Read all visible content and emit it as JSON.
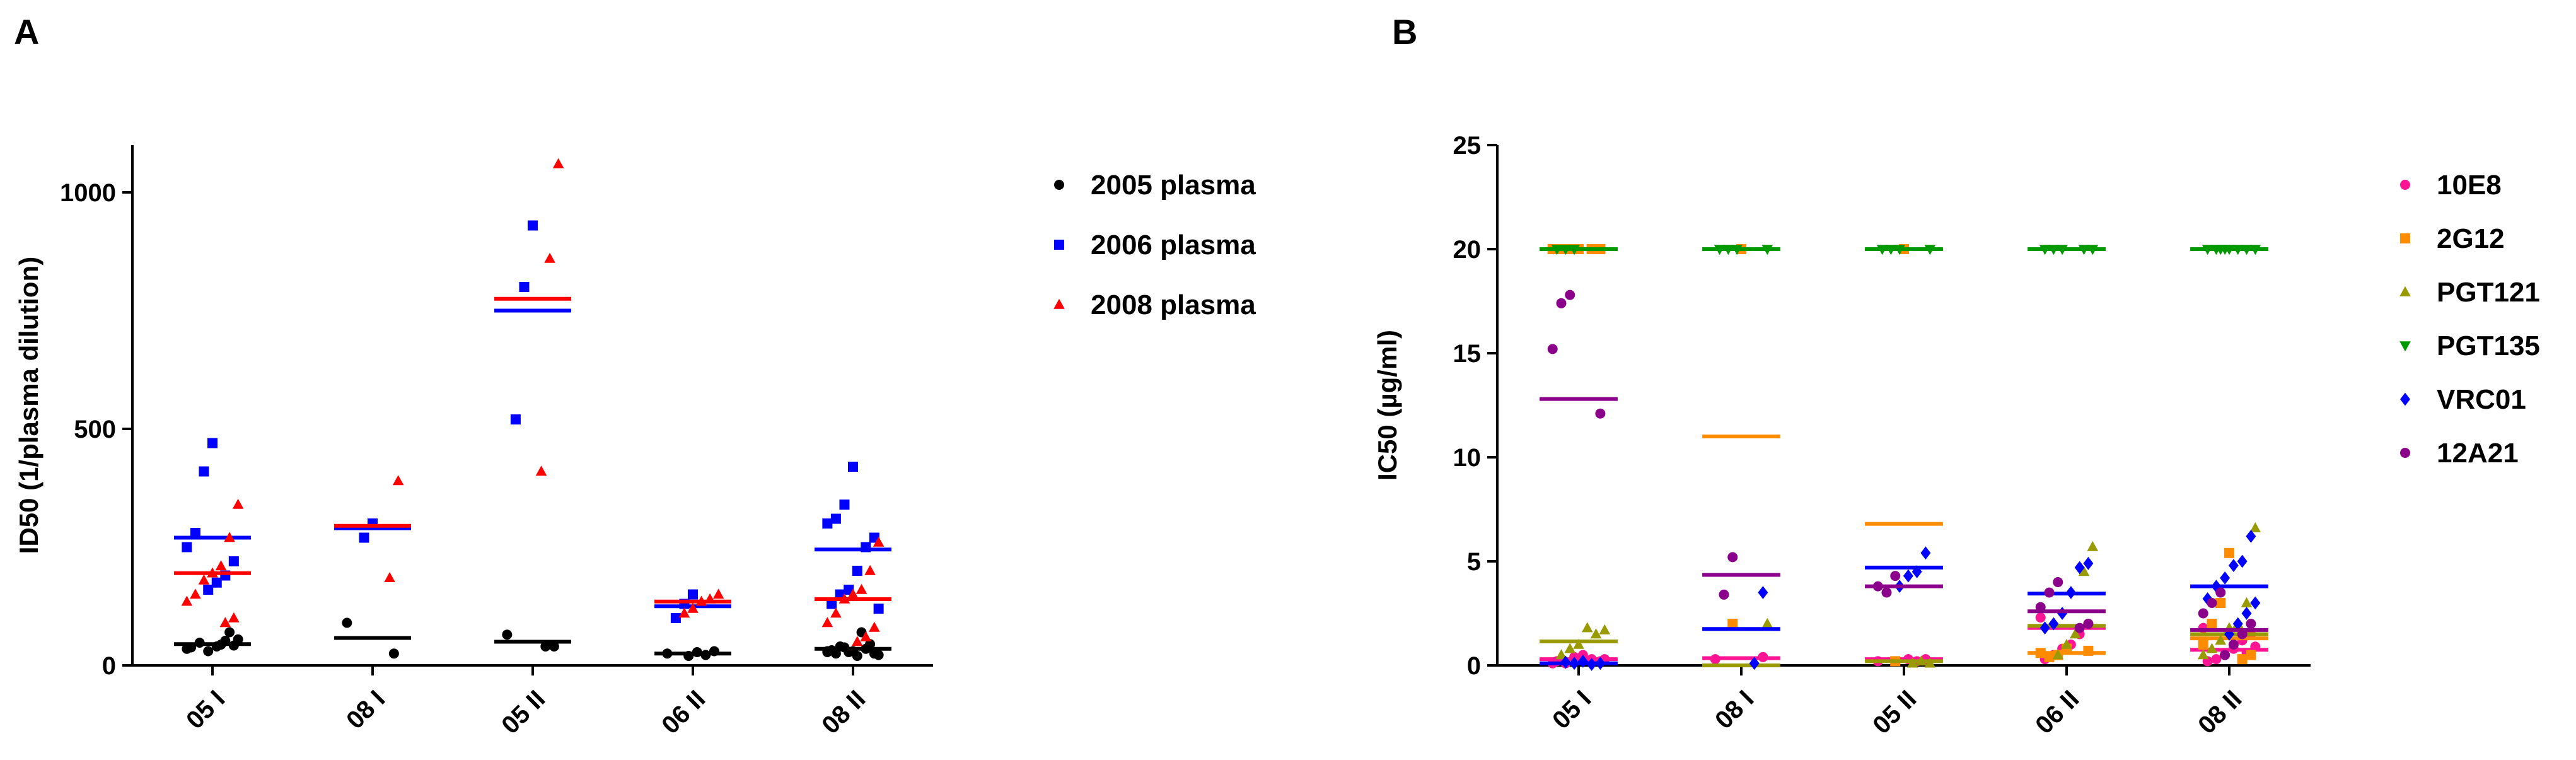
{
  "chart_data": [
    {
      "panel": "A",
      "type": "scatter",
      "categories": [
        "05 I",
        "08 I",
        "05 II",
        "06 II",
        "08 II"
      ],
      "ylabel": "ID50 (1/plasma dilution)",
      "xlabel": "",
      "ylim": [
        0,
        1100
      ],
      "yticks": [
        0,
        500,
        1000
      ],
      "legend_position": "right",
      "series": [
        {
          "name": "2005 plasma",
          "color": "#000000",
          "marker": "circle",
          "points": [
            [
              0,
              35
            ],
            [
              0,
              42
            ],
            [
              0,
              52
            ],
            [
              0,
              40
            ],
            [
              0,
              30
            ],
            [
              0,
              48
            ],
            [
              0,
              38
            ],
            [
              0,
              55
            ],
            [
              0,
              70
            ],
            [
              0,
              44
            ],
            [
              1,
              90
            ],
            [
              1,
              25
            ],
            [
              2,
              65
            ],
            [
              2,
              40
            ],
            [
              2,
              40
            ],
            [
              3,
              25
            ],
            [
              3,
              30
            ],
            [
              3,
              22
            ],
            [
              3,
              28
            ],
            [
              3,
              20
            ],
            [
              4,
              30
            ],
            [
              4,
              25
            ],
            [
              4,
              35
            ],
            [
              4,
              20
            ],
            [
              4,
              28
            ],
            [
              4,
              40
            ],
            [
              4,
              32
            ],
            [
              4,
              22
            ],
            [
              4,
              45
            ],
            [
              4,
              70
            ],
            [
              4,
              30
            ],
            [
              4,
              38
            ],
            [
              4,
              25
            ],
            [
              4,
              28
            ]
          ],
          "means": [
            45,
            58,
            50,
            25,
            35
          ]
        },
        {
          "name": "2006 plasma",
          "color": "#0000ff",
          "marker": "square",
          "points": [
            [
              0,
              470
            ],
            [
              0,
              410
            ],
            [
              0,
              280
            ],
            [
              0,
              250
            ],
            [
              0,
              220
            ],
            [
              0,
              190
            ],
            [
              0,
              175
            ],
            [
              0,
              160
            ],
            [
              1,
              300
            ],
            [
              1,
              270
            ],
            [
              2,
              930
            ],
            [
              2,
              800
            ],
            [
              2,
              520
            ],
            [
              3,
              150
            ],
            [
              3,
              130
            ],
            [
              3,
              100
            ],
            [
              4,
              420
            ],
            [
              4,
              340
            ],
            [
              4,
              310
            ],
            [
              4,
              300
            ],
            [
              4,
              270
            ],
            [
              4,
              250
            ],
            [
              4,
              200
            ],
            [
              4,
              160
            ],
            [
              4,
              150
            ],
            [
              4,
              130
            ],
            [
              4,
              120
            ]
          ],
          "means": [
            270,
            290,
            750,
            125,
            245
          ]
        },
        {
          "name": "2008 plasma",
          "color": "#ff0000",
          "marker": "triangle",
          "points": [
            [
              0,
              340
            ],
            [
              0,
              270
            ],
            [
              0,
              210
            ],
            [
              0,
              195
            ],
            [
              0,
              180
            ],
            [
              0,
              150
            ],
            [
              0,
              135
            ],
            [
              0,
              100
            ],
            [
              0,
              90
            ],
            [
              1,
              390
            ],
            [
              1,
              185
            ],
            [
              2,
              1060
            ],
            [
              2,
              860
            ],
            [
              2,
              410
            ],
            [
              3,
              150
            ],
            [
              3,
              140
            ],
            [
              3,
              135
            ],
            [
              3,
              120
            ],
            [
              3,
              110
            ],
            [
              4,
              260
            ],
            [
              4,
              200
            ],
            [
              4,
              160
            ],
            [
              4,
              150
            ],
            [
              4,
              140
            ],
            [
              4,
              110
            ],
            [
              4,
              90
            ],
            [
              4,
              80
            ],
            [
              4,
              60
            ],
            [
              4,
              50
            ]
          ],
          "means": [
            195,
            295,
            775,
            135,
            140
          ]
        }
      ]
    },
    {
      "panel": "B",
      "type": "scatter",
      "categories": [
        "05 I",
        "08 I",
        "05 II",
        "06 II",
        "08 II"
      ],
      "ylabel": "IC50 (µg/ml)",
      "xlabel": "",
      "ylim": [
        0,
        25
      ],
      "yticks": [
        0,
        5,
        10,
        15,
        20,
        25
      ],
      "legend_position": "right",
      "series": [
        {
          "name": "10E8",
          "color": "#ff1493",
          "marker": "circle",
          "points": [
            [
              0,
              0.1
            ],
            [
              0,
              0.2
            ],
            [
              0,
              0.3
            ],
            [
              0,
              0.5
            ],
            [
              0,
              0.4
            ],
            [
              0,
              0.1
            ],
            [
              0,
              0.2
            ],
            [
              0,
              0.3
            ],
            [
              1,
              0.3
            ],
            [
              1,
              0.4
            ],
            [
              2,
              0.2
            ],
            [
              2,
              0.3
            ],
            [
              2,
              0.2
            ],
            [
              2,
              0.3
            ],
            [
              3,
              2.3
            ],
            [
              3,
              2.0
            ],
            [
              3,
              1.5
            ],
            [
              3,
              1.0
            ],
            [
              3,
              0.8
            ],
            [
              3,
              0.5
            ],
            [
              3,
              0.3
            ],
            [
              4,
              1.8
            ],
            [
              4,
              1.5
            ],
            [
              4,
              1.2
            ],
            [
              4,
              0.8
            ],
            [
              4,
              0.5
            ],
            [
              4,
              0.3
            ],
            [
              4,
              0.2
            ],
            [
              4,
              0.9
            ],
            [
              4,
              0.6
            ]
          ],
          "means": [
            0.3,
            0.35,
            0.3,
            1.8,
            0.75
          ]
        },
        {
          "name": "2G12",
          "color": "#ff8c00",
          "marker": "square",
          "points": [
            [
              0,
              20
            ],
            [
              0,
              20
            ],
            [
              0,
              20
            ],
            [
              0,
              20
            ],
            [
              0,
              20
            ],
            [
              0,
              20
            ],
            [
              1,
              20
            ],
            [
              1,
              2.0
            ],
            [
              2,
              20
            ],
            [
              2,
              0.2
            ],
            [
              3,
              0.8
            ],
            [
              3,
              0.5
            ],
            [
              3,
              0.4
            ],
            [
              3,
              0.6
            ],
            [
              3,
              0.7
            ],
            [
              4,
              5.4
            ],
            [
              4,
              3.0
            ],
            [
              4,
              2.0
            ],
            [
              4,
              1.0
            ],
            [
              4,
              0.5
            ],
            [
              4,
              0.3
            ]
          ],
          "means": [
            20,
            11,
            6.8,
            0.6,
            1.3
          ]
        },
        {
          "name": "PGT121",
          "color": "#999900",
          "marker": "triangle",
          "points": [
            [
              0,
              1.7
            ],
            [
              0,
              1.5
            ],
            [
              0,
              1.8
            ],
            [
              0,
              1.0
            ],
            [
              0,
              0.8
            ],
            [
              0,
              0.5
            ],
            [
              1,
              2.0
            ],
            [
              2,
              0.1
            ],
            [
              2,
              0.2
            ],
            [
              2,
              0.1
            ],
            [
              3,
              5.7
            ],
            [
              3,
              4.5
            ],
            [
              3,
              1.5
            ],
            [
              3,
              1.0
            ],
            [
              3,
              0.5
            ],
            [
              4,
              6.6
            ],
            [
              4,
              3.0
            ],
            [
              4,
              2.0
            ],
            [
              4,
              1.8
            ],
            [
              4,
              1.2
            ],
            [
              4,
              0.8
            ],
            [
              4,
              0.5
            ]
          ],
          "means": [
            1.15,
            0,
            0.2,
            1.9,
            1.5
          ]
        },
        {
          "name": "PGT135",
          "color": "#009900",
          "marker": "triangle-down",
          "points": [
            [
              0,
              20
            ],
            [
              0,
              20
            ],
            [
              0,
              20
            ],
            [
              1,
              20
            ],
            [
              1,
              20
            ],
            [
              1,
              20
            ],
            [
              1,
              20
            ],
            [
              2,
              20
            ],
            [
              2,
              20
            ],
            [
              2,
              20
            ],
            [
              2,
              20
            ],
            [
              3,
              20
            ],
            [
              3,
              20
            ],
            [
              3,
              20
            ],
            [
              3,
              20
            ],
            [
              3,
              20
            ],
            [
              4,
              20
            ],
            [
              4,
              20
            ],
            [
              4,
              20
            ],
            [
              4,
              20
            ],
            [
              4,
              20
            ],
            [
              4,
              20
            ],
            [
              4,
              20
            ],
            [
              4,
              20
            ]
          ],
          "means": [
            20,
            20,
            20,
            20,
            20
          ]
        },
        {
          "name": "VRC01",
          "color": "#0000ff",
          "marker": "diamond",
          "points": [
            [
              0,
              0.1
            ],
            [
              0,
              0.05
            ],
            [
              0,
              0.2
            ],
            [
              0,
              0.1
            ],
            [
              0,
              0.15
            ],
            [
              1,
              3.5
            ],
            [
              1,
              0.1
            ],
            [
              2,
              5.4
            ],
            [
              2,
              4.5
            ],
            [
              2,
              4.3
            ],
            [
              2,
              3.8
            ],
            [
              3,
              4.9
            ],
            [
              3,
              4.7
            ],
            [
              3,
              3.5
            ],
            [
              3,
              2.5
            ],
            [
              3,
              2.0
            ],
            [
              3,
              1.8
            ],
            [
              4,
              6.2
            ],
            [
              4,
              5.0
            ],
            [
              4,
              4.8
            ],
            [
              4,
              4.2
            ],
            [
              4,
              3.8
            ],
            [
              4,
              3.2
            ],
            [
              4,
              3.0
            ],
            [
              4,
              2.5
            ],
            [
              4,
              2.0
            ],
            [
              4,
              1.5
            ]
          ],
          "means": [
            0.1,
            1.75,
            4.7,
            3.45,
            3.8
          ]
        },
        {
          "name": "12A21",
          "color": "#8b008b",
          "marker": "circle",
          "points": [
            [
              0,
              17.8
            ],
            [
              0,
              17.4
            ],
            [
              0,
              15.2
            ],
            [
              0,
              12.1
            ],
            [
              1,
              5.2
            ],
            [
              1,
              3.4
            ],
            [
              2,
              4.3
            ],
            [
              2,
              3.5
            ],
            [
              2,
              3.8
            ],
            [
              3,
              4.0
            ],
            [
              3,
              3.5
            ],
            [
              3,
              2.8
            ],
            [
              3,
              2.0
            ],
            [
              3,
              1.8
            ],
            [
              4,
              3.5
            ],
            [
              4,
              3.0
            ],
            [
              4,
              2.5
            ],
            [
              4,
              2.0
            ],
            [
              4,
              1.5
            ],
            [
              4,
              1.0
            ],
            [
              4,
              0.5
            ]
          ],
          "means": [
            12.8,
            4.35,
            3.8,
            2.6,
            1.7
          ]
        }
      ]
    }
  ]
}
